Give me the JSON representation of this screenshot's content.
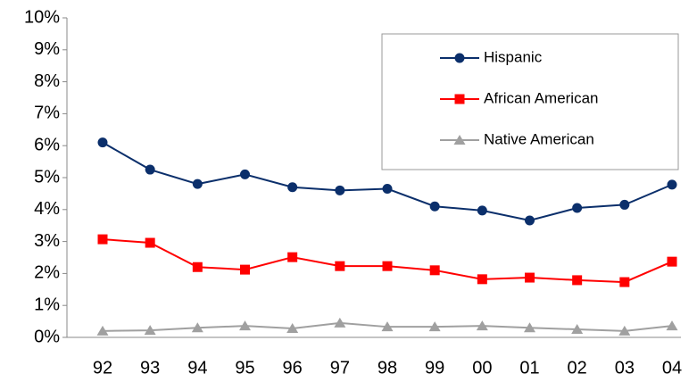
{
  "chart_data": {
    "type": "line",
    "categories": [
      "92",
      "93",
      "94",
      "95",
      "96",
      "97",
      "98",
      "99",
      "00",
      "01",
      "02",
      "03",
      "04"
    ],
    "series": [
      {
        "name": "Hispanic",
        "color": "#0b2f6b",
        "marker": "circle",
        "values": [
          6.1,
          5.25,
          4.8,
          5.1,
          4.7,
          4.6,
          4.65,
          4.1,
          3.97,
          3.66,
          4.05,
          4.15,
          4.78
        ]
      },
      {
        "name": "African American",
        "color": "#ff0000",
        "marker": "square",
        "values": [
          3.07,
          2.96,
          2.2,
          2.12,
          2.51,
          2.23,
          2.23,
          2.1,
          1.82,
          1.87,
          1.79,
          1.73,
          2.37
        ]
      },
      {
        "name": "Native American",
        "color": "#a0a0a0",
        "marker": "triangle",
        "values": [
          0.2,
          0.22,
          0.3,
          0.36,
          0.28,
          0.45,
          0.33,
          0.33,
          0.36,
          0.3,
          0.25,
          0.2,
          0.36
        ]
      }
    ],
    "ylim": [
      0,
      10
    ],
    "yticks": [
      {
        "value": 0,
        "label": "0%"
      },
      {
        "value": 1,
        "label": "1%"
      },
      {
        "value": 2,
        "label": "2%"
      },
      {
        "value": 3,
        "label": "3%"
      },
      {
        "value": 4,
        "label": "4%"
      },
      {
        "value": 5,
        "label": "5%"
      },
      {
        "value": 6,
        "label": "6%"
      },
      {
        "value": 7,
        "label": "7%"
      },
      {
        "value": 8,
        "label": "8%"
      },
      {
        "value": 9,
        "label": "9%"
      },
      {
        "value": 10,
        "label": "10%"
      }
    ],
    "grid": false,
    "legend": "upper right"
  }
}
